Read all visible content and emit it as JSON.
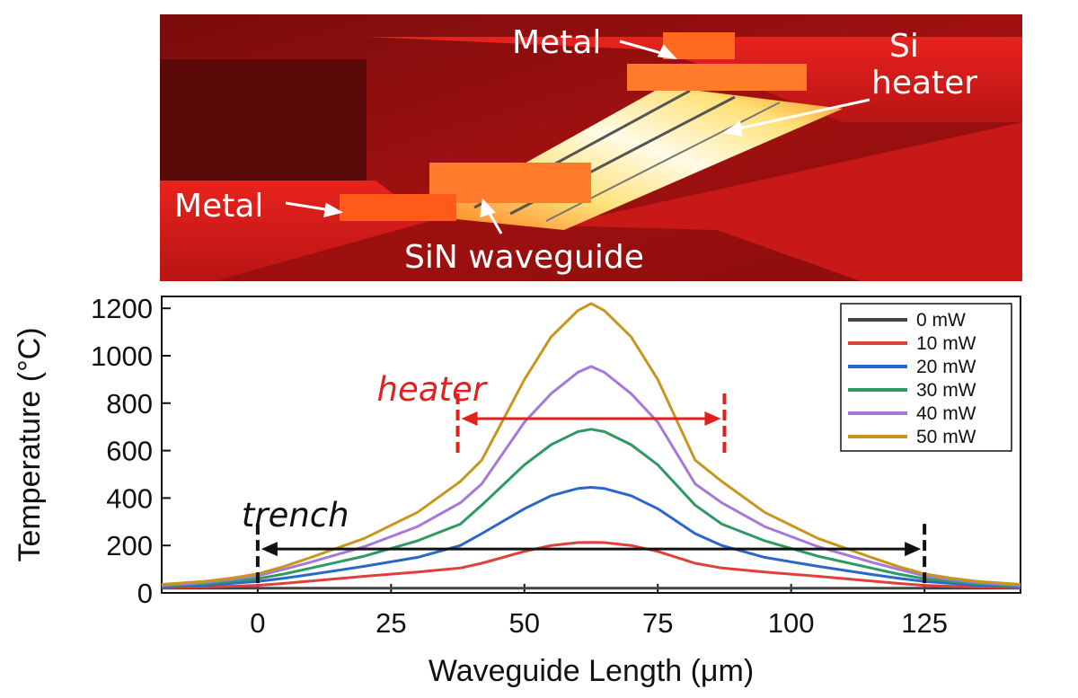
{
  "figure": {
    "render_labels": {
      "metal_top": "Metal",
      "si_heater_line1": "Si",
      "si_heater_line2": "heater",
      "metal_left": "Metal",
      "sin_waveguide": "SiN waveguide"
    }
  },
  "chart_data": {
    "type": "line",
    "title": "",
    "xlabel": "Waveguide Length (μm)",
    "ylabel": "Temperature (°C)",
    "xlim": [
      -18,
      143
    ],
    "ylim": [
      0,
      1250
    ],
    "xticks": [
      0,
      25,
      50,
      75,
      100,
      125
    ],
    "yticks": [
      0,
      200,
      400,
      600,
      800,
      1000,
      1200
    ],
    "grid": false,
    "legend_position": "top-right",
    "x": [
      -18,
      -10,
      -5,
      0,
      5,
      10,
      20,
      30,
      38,
      42,
      50,
      55,
      60,
      62.5,
      65,
      70,
      75,
      82,
      87,
      95,
      105,
      115,
      120,
      125,
      130,
      135,
      143
    ],
    "series": [
      {
        "name": "0 mW",
        "color": "#444444",
        "values": [
          20,
          20,
          20,
          20,
          20,
          20,
          20,
          20,
          20,
          20,
          20,
          20,
          20,
          20,
          20,
          20,
          20,
          20,
          20,
          20,
          20,
          20,
          20,
          20,
          20,
          20,
          20
        ]
      },
      {
        "name": "10 mW",
        "color": "#e0403a",
        "values": [
          22,
          25,
          28,
          32,
          40,
          50,
          70,
          88,
          105,
          125,
          175,
          200,
          212,
          213,
          212,
          200,
          175,
          125,
          105,
          88,
          70,
          50,
          40,
          32,
          28,
          25,
          22
        ]
      },
      {
        "name": "20 mW",
        "color": "#2a68c8",
        "values": [
          25,
          32,
          40,
          48,
          62,
          78,
          112,
          150,
          200,
          250,
          355,
          410,
          440,
          445,
          440,
          410,
          355,
          250,
          200,
          150,
          112,
          78,
          62,
          48,
          40,
          32,
          25
        ]
      },
      {
        "name": "30 mW",
        "color": "#2e9a62",
        "values": [
          28,
          38,
          48,
          60,
          80,
          105,
          155,
          220,
          290,
          370,
          540,
          625,
          680,
          690,
          680,
          625,
          540,
          370,
          290,
          220,
          155,
          105,
          80,
          60,
          48,
          38,
          28
        ]
      },
      {
        "name": "40 mW",
        "color": "#a678d8",
        "values": [
          32,
          44,
          56,
          72,
          100,
          130,
          195,
          280,
          380,
          460,
          720,
          840,
          930,
          955,
          930,
          840,
          720,
          460,
          380,
          280,
          195,
          130,
          100,
          72,
          56,
          44,
          32
        ]
      },
      {
        "name": "50 mW",
        "color": "#c8961c",
        "values": [
          36,
          48,
          62,
          80,
          112,
          150,
          230,
          340,
          470,
          560,
          900,
          1080,
          1190,
          1220,
          1190,
          1080,
          900,
          560,
          470,
          340,
          230,
          150,
          112,
          80,
          62,
          48,
          36
        ]
      }
    ],
    "annotations": [
      {
        "text": "heater",
        "color": "#e3211c",
        "x_range": [
          37.5,
          87.5
        ],
        "y": 735
      },
      {
        "text": "trench",
        "color": "#111111",
        "x_range": [
          0,
          125
        ],
        "y": 185
      }
    ]
  },
  "colors": {
    "heater_annotation": "#e3211c",
    "trench_annotation": "#111111"
  }
}
